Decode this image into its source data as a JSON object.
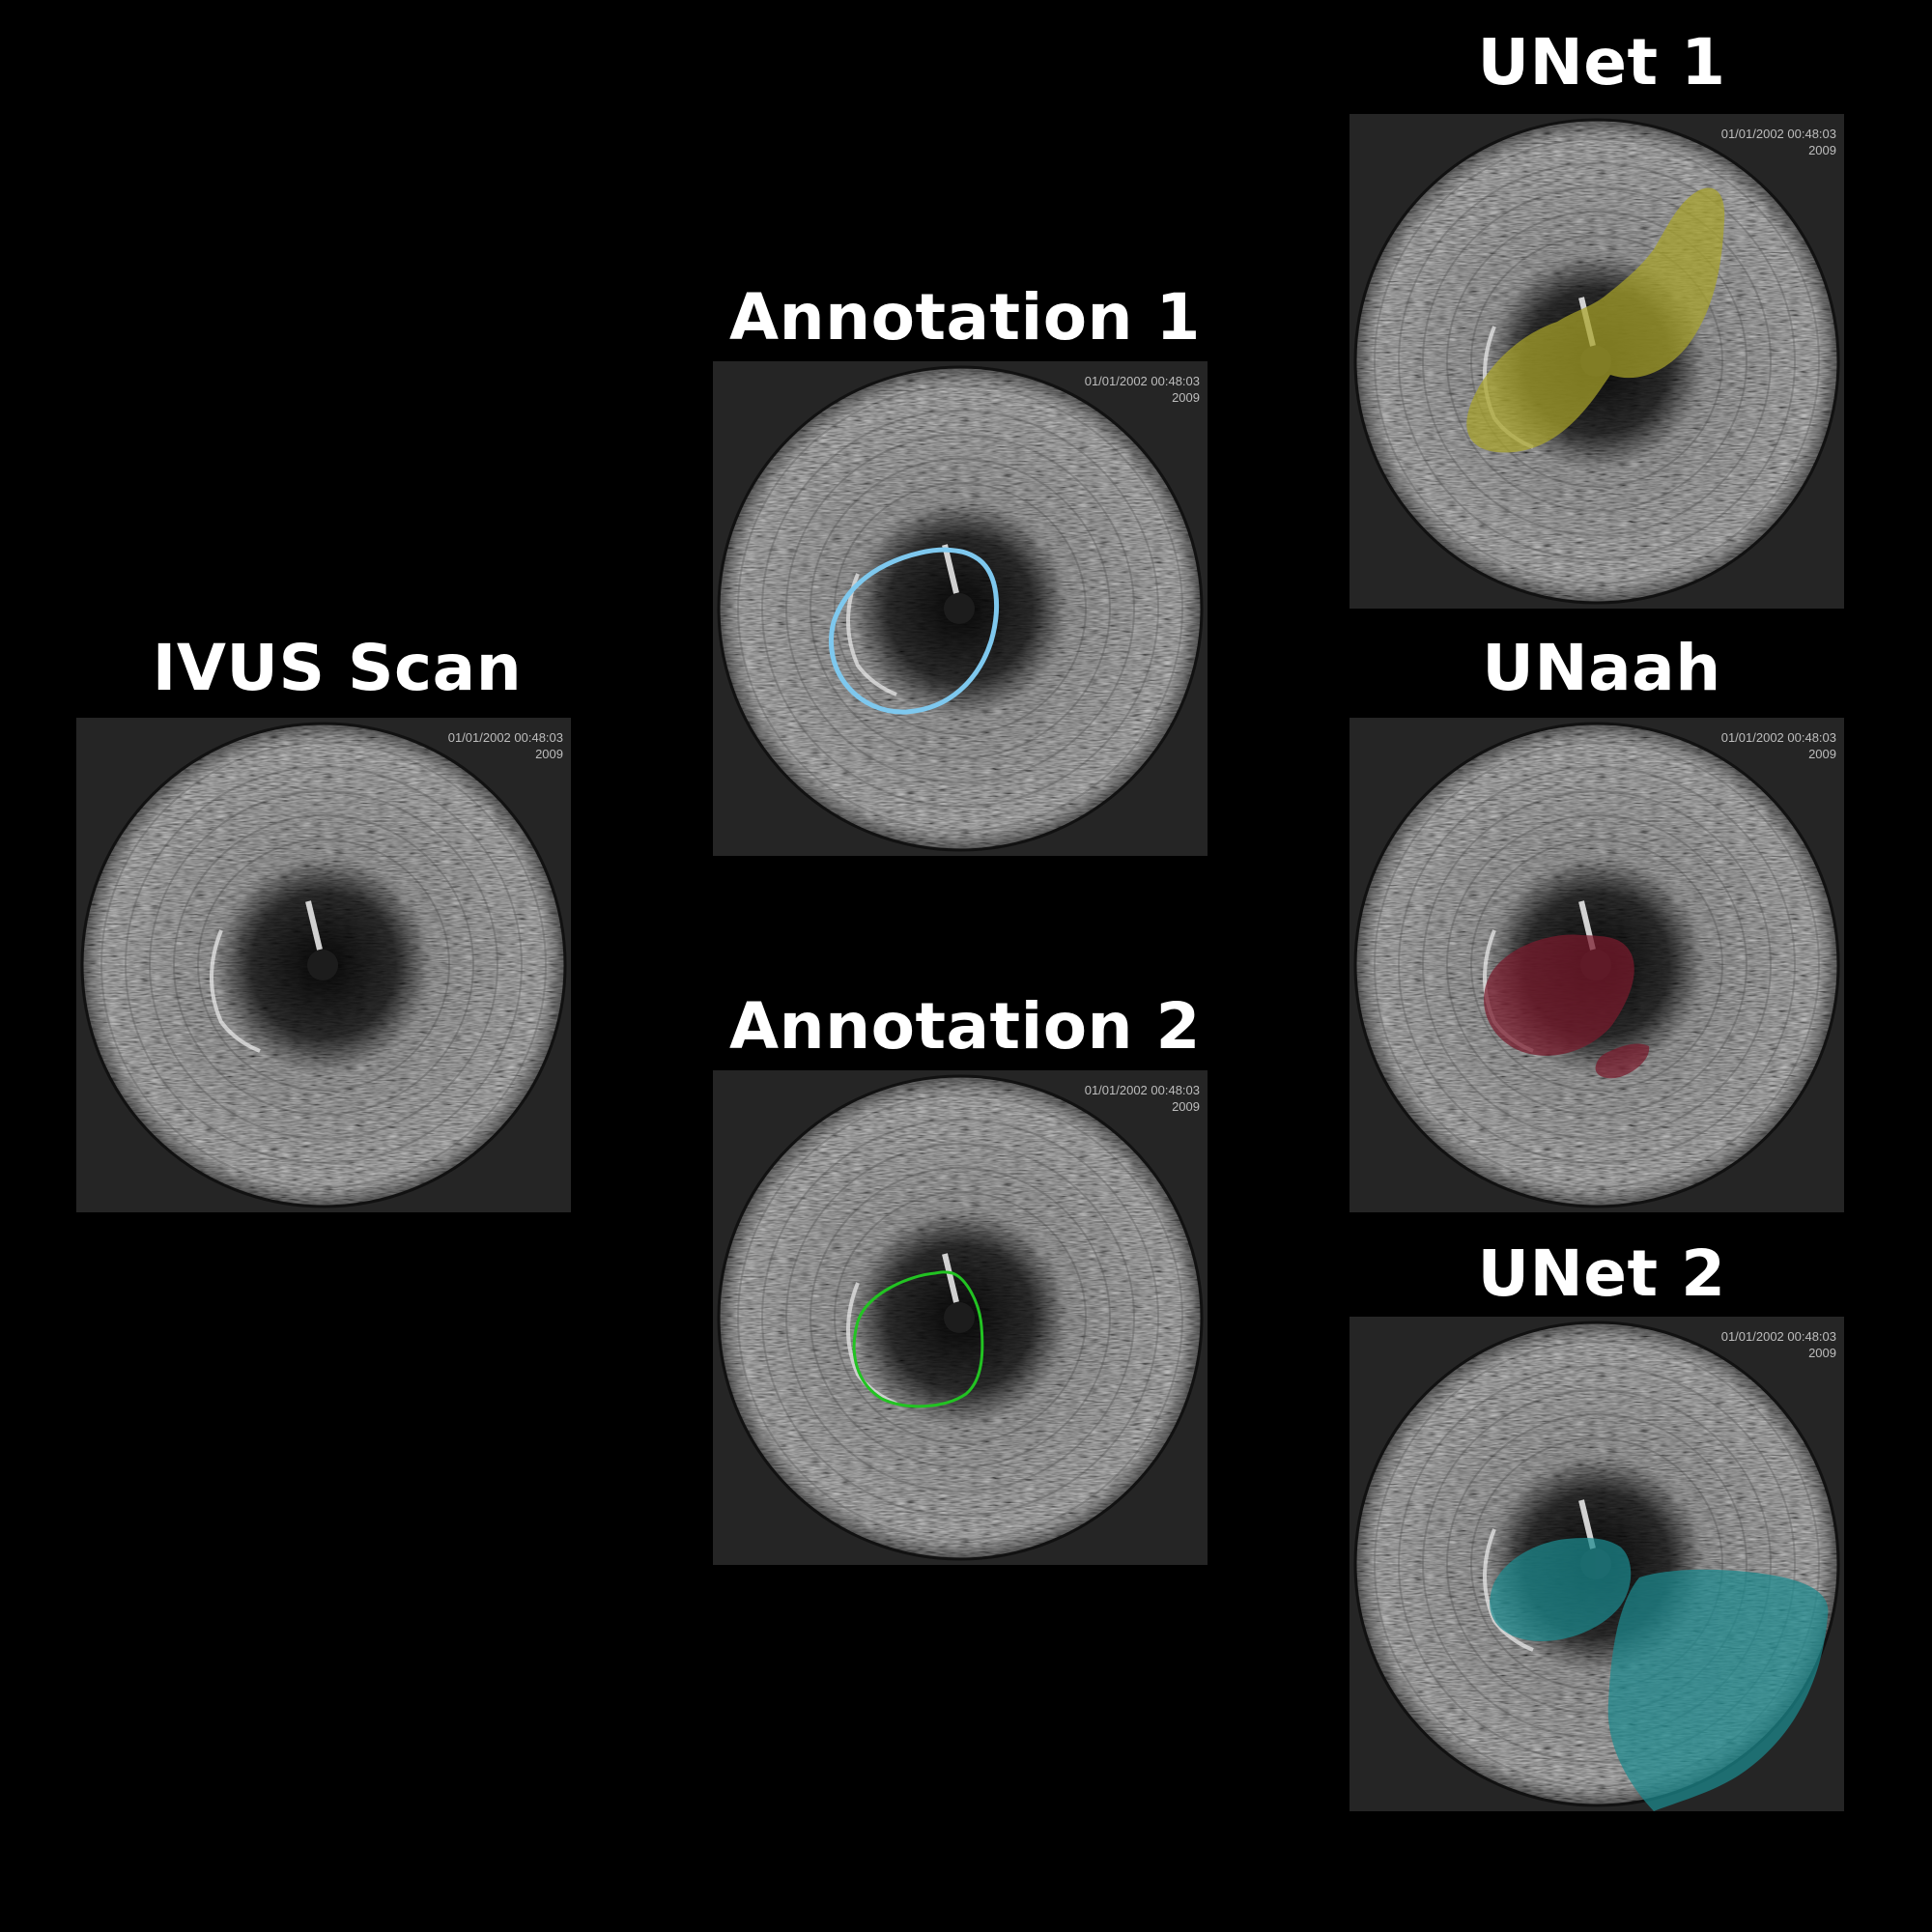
{
  "panels": {
    "ivus": {
      "title": "IVUS Scan",
      "date": "01/01/2002 00:48:03",
      "code": "2009"
    },
    "annotation1": {
      "title": "Annotation 1",
      "date": "01/01/2002 00:48:03",
      "code": "2009",
      "contour_color": "#7ec8ee"
    },
    "annotation2": {
      "title": "Annotation 2",
      "date": "01/01/2002 00:48:03",
      "code": "2009",
      "contour_color": "#22c322"
    },
    "unet1": {
      "title": "UNet 1",
      "date": "01/01/2002 00:48:03",
      "code": "2009",
      "mask_color": "#a9a32a"
    },
    "unaah": {
      "title": "UNaah",
      "date": "01/01/2002 00:48:03",
      "code": "2009",
      "mask_color": "#7a1a2c"
    },
    "unet2": {
      "title": "UNet 2",
      "date": "01/01/2002 00:48:03",
      "code": "2009",
      "mask_color": "#1c8a8f"
    }
  }
}
